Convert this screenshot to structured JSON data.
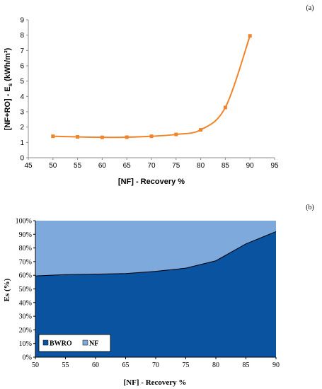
{
  "panels": {
    "a": {
      "label": "(a)"
    },
    "b": {
      "label": "(b)"
    }
  },
  "chart_data": [
    {
      "type": "line",
      "xlabel": "[NF] - Recovery %",
      "ylabel": "[NF+RO] - E",
      "ylabel_sub": "s",
      "ylabel_unit": " (kWh/m³)",
      "xlim": [
        45,
        95
      ],
      "ylim": [
        0,
        9
      ],
      "x_ticks": [
        45,
        50,
        55,
        60,
        65,
        70,
        75,
        80,
        85,
        90,
        95
      ],
      "y_ticks": [
        0,
        1,
        2,
        3,
        4,
        5,
        6,
        7,
        8,
        9
      ],
      "grid": false,
      "color": "#F0842A",
      "x": [
        50,
        55,
        60,
        65,
        70,
        75,
        80,
        85,
        90
      ],
      "y": [
        1.4,
        1.36,
        1.33,
        1.34,
        1.4,
        1.52,
        1.82,
        3.28,
        7.95
      ]
    },
    {
      "type": "area",
      "stacked": true,
      "percent": true,
      "xlabel": "[NF] - Recovery %",
      "ylabel": "Es (%)",
      "xlim": [
        50,
        90
      ],
      "ylim": [
        0,
        100
      ],
      "x_ticks": [
        50,
        55,
        60,
        65,
        70,
        75,
        80,
        85,
        90
      ],
      "y_ticks": [
        "0%",
        "10%",
        "20%",
        "30%",
        "40%",
        "50%",
        "60%",
        "70%",
        "80%",
        "90%",
        "100%"
      ],
      "legend_position": "bottom-left",
      "categories": [
        50,
        55,
        60,
        65,
        70,
        75,
        80,
        85,
        90
      ],
      "series": [
        {
          "name": "BWRO",
          "color": "#0A53A0",
          "values": [
            59.5,
            60.5,
            60.8,
            61.3,
            62.9,
            65.2,
            70.6,
            83.0,
            92.0
          ]
        },
        {
          "name": "NF",
          "color": "#7EA9DC",
          "values": [
            40.5,
            39.5,
            39.2,
            38.7,
            37.1,
            34.8,
            29.4,
            17.0,
            8.0
          ]
        }
      ]
    }
  ]
}
